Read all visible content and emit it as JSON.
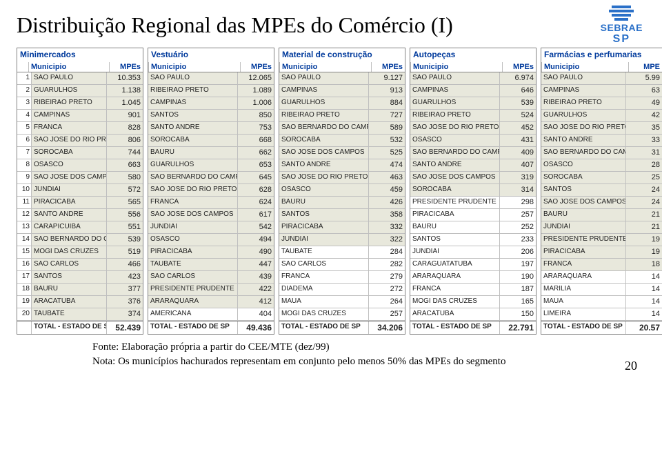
{
  "page_title": "Distribuição Regional das MPEs do Comércio (I)",
  "logo": {
    "brand": "SEBRAE",
    "sub": "SP"
  },
  "header_labels": {
    "municipio": "Municipio",
    "mpes": "MPEs",
    "mpe_trunc": "MPE"
  },
  "categories": [
    {
      "name": "Minimercados",
      "show_index": true,
      "rows": [
        {
          "i": "1",
          "m": "SAO PAULO",
          "v": "10.353",
          "s": true
        },
        {
          "i": "2",
          "m": "GUARULHOS",
          "v": "1.138",
          "s": true
        },
        {
          "i": "3",
          "m": "RIBEIRAO PRETO",
          "v": "1.045",
          "s": true
        },
        {
          "i": "4",
          "m": "CAMPINAS",
          "v": "901",
          "s": true
        },
        {
          "i": "5",
          "m": "FRANCA",
          "v": "828",
          "s": true
        },
        {
          "i": "6",
          "m": "SAO JOSE DO RIO PRETO",
          "v": "806",
          "s": true
        },
        {
          "i": "7",
          "m": "SOROCABA",
          "v": "744",
          "s": true
        },
        {
          "i": "8",
          "m": "OSASCO",
          "v": "663",
          "s": true
        },
        {
          "i": "9",
          "m": "SAO JOSE DOS CAMPOS",
          "v": "580",
          "s": true
        },
        {
          "i": "10",
          "m": "JUNDIAI",
          "v": "572",
          "s": true
        },
        {
          "i": "11",
          "m": "PIRACICABA",
          "v": "565",
          "s": true
        },
        {
          "i": "12",
          "m": "SANTO ANDRE",
          "v": "556",
          "s": true
        },
        {
          "i": "13",
          "m": "CARAPICUIBA",
          "v": "551",
          "s": true
        },
        {
          "i": "14",
          "m": "SAO BERNARDO DO CAMPO",
          "v": "539",
          "s": true
        },
        {
          "i": "15",
          "m": "MOGI DAS CRUZES",
          "v": "519",
          "s": true
        },
        {
          "i": "16",
          "m": "SAO CARLOS",
          "v": "466",
          "s": true
        },
        {
          "i": "17",
          "m": "SANTOS",
          "v": "423",
          "s": true
        },
        {
          "i": "18",
          "m": "BAURU",
          "v": "377",
          "s": true
        },
        {
          "i": "19",
          "m": "ARACATUBA",
          "v": "376",
          "s": true
        },
        {
          "i": "20",
          "m": "TAUBATE",
          "v": "374",
          "s": true
        }
      ],
      "total": {
        "m": "TOTAL - ESTADO DE SP",
        "v": "52.439"
      }
    },
    {
      "name": "Vestuário",
      "show_index": false,
      "rows": [
        {
          "m": "SAO PAULO",
          "v": "12.065",
          "s": true
        },
        {
          "m": "RIBEIRAO PRETO",
          "v": "1.089",
          "s": true
        },
        {
          "m": "CAMPINAS",
          "v": "1.006",
          "s": true
        },
        {
          "m": "SANTOS",
          "v": "850",
          "s": true
        },
        {
          "m": "SANTO ANDRE",
          "v": "753",
          "s": true
        },
        {
          "m": "SOROCABA",
          "v": "668",
          "s": true
        },
        {
          "m": "BAURU",
          "v": "662",
          "s": true
        },
        {
          "m": "GUARULHOS",
          "v": "653",
          "s": true
        },
        {
          "m": "SAO BERNARDO DO CAMPO",
          "v": "645",
          "s": true
        },
        {
          "m": "SAO JOSE DO RIO PRETO",
          "v": "628",
          "s": true
        },
        {
          "m": "FRANCA",
          "v": "624",
          "s": true
        },
        {
          "m": "SAO JOSE DOS CAMPOS",
          "v": "617",
          "s": true
        },
        {
          "m": "JUNDIAI",
          "v": "542",
          "s": true
        },
        {
          "m": "OSASCO",
          "v": "494",
          "s": true
        },
        {
          "m": "PIRACICABA",
          "v": "490",
          "s": true
        },
        {
          "m": "TAUBATE",
          "v": "447",
          "s": true
        },
        {
          "m": "SAO CARLOS",
          "v": "439",
          "s": true
        },
        {
          "m": "PRESIDENTE PRUDENTE",
          "v": "422",
          "s": true
        },
        {
          "m": "ARARAQUARA",
          "v": "412",
          "s": true
        },
        {
          "m": "AMERICANA",
          "v": "404",
          "s": false
        }
      ],
      "total": {
        "m": "TOTAL - ESTADO DE SP",
        "v": "49.436"
      }
    },
    {
      "name": "Material de construção",
      "show_index": false,
      "rows": [
        {
          "m": "SAO PAULO",
          "v": "9.127",
          "s": true
        },
        {
          "m": "CAMPINAS",
          "v": "913",
          "s": true
        },
        {
          "m": "GUARULHOS",
          "v": "884",
          "s": true
        },
        {
          "m": "RIBEIRAO PRETO",
          "v": "727",
          "s": true
        },
        {
          "m": "SAO BERNARDO DO CAMPO",
          "v": "589",
          "s": true
        },
        {
          "m": "SOROCABA",
          "v": "532",
          "s": true
        },
        {
          "m": "SAO JOSE DOS CAMPOS",
          "v": "525",
          "s": true
        },
        {
          "m": "SANTO ANDRE",
          "v": "474",
          "s": true
        },
        {
          "m": "SAO JOSE DO RIO PRETO",
          "v": "463",
          "s": true
        },
        {
          "m": "OSASCO",
          "v": "459",
          "s": true
        },
        {
          "m": "BAURU",
          "v": "426",
          "s": true
        },
        {
          "m": "SANTOS",
          "v": "358",
          "s": true
        },
        {
          "m": "PIRACICABA",
          "v": "332",
          "s": true
        },
        {
          "m": "JUNDIAI",
          "v": "322",
          "s": true
        },
        {
          "m": "TAUBATE",
          "v": "284",
          "s": false
        },
        {
          "m": "SAO CARLOS",
          "v": "282",
          "s": false
        },
        {
          "m": "FRANCA",
          "v": "279",
          "s": false
        },
        {
          "m": "DIADEMA",
          "v": "272",
          "s": false
        },
        {
          "m": "MAUA",
          "v": "264",
          "s": false
        },
        {
          "m": "MOGI DAS CRUZES",
          "v": "257",
          "s": false
        }
      ],
      "total": {
        "m": "TOTAL - ESTADO DE SP",
        "v": "34.206"
      }
    },
    {
      "name": "Autopeças",
      "show_index": false,
      "rows": [
        {
          "m": "SAO PAULO",
          "v": "6.974",
          "s": true
        },
        {
          "m": "CAMPINAS",
          "v": "646",
          "s": true
        },
        {
          "m": "GUARULHOS",
          "v": "539",
          "s": true
        },
        {
          "m": "RIBEIRAO PRETO",
          "v": "524",
          "s": true
        },
        {
          "m": "SAO JOSE DO RIO PRETO",
          "v": "452",
          "s": true
        },
        {
          "m": "OSASCO",
          "v": "431",
          "s": true
        },
        {
          "m": "SAO BERNARDO DO CAMPO",
          "v": "409",
          "s": true
        },
        {
          "m": "SANTO ANDRE",
          "v": "407",
          "s": true
        },
        {
          "m": "SAO JOSE DOS CAMPOS",
          "v": "319",
          "s": true
        },
        {
          "m": "SOROCABA",
          "v": "314",
          "s": true
        },
        {
          "m": "PRESIDENTE PRUDENTE",
          "v": "298",
          "s": false
        },
        {
          "m": "PIRACICABA",
          "v": "257",
          "s": false
        },
        {
          "m": "BAURU",
          "v": "252",
          "s": false
        },
        {
          "m": "SANTOS",
          "v": "233",
          "s": false
        },
        {
          "m": "JUNDIAI",
          "v": "206",
          "s": false
        },
        {
          "m": "CARAGUATATUBA",
          "v": "197",
          "s": false
        },
        {
          "m": "ARARAQUARA",
          "v": "190",
          "s": false
        },
        {
          "m": "FRANCA",
          "v": "187",
          "s": false
        },
        {
          "m": "MOGI DAS CRUZES",
          "v": "165",
          "s": false
        },
        {
          "m": "ARACATUBA",
          "v": "150",
          "s": false
        }
      ],
      "total": {
        "m": "TOTAL - ESTADO DE SP",
        "v": "22.791"
      }
    },
    {
      "name": "Farmácias e perfumarias",
      "show_index": false,
      "truncated_header": true,
      "rows": [
        {
          "m": "SAO PAULO",
          "v": "5.99",
          "s": true
        },
        {
          "m": "CAMPINAS",
          "v": "63",
          "s": true
        },
        {
          "m": "RIBEIRAO PRETO",
          "v": "49",
          "s": true
        },
        {
          "m": "GUARULHOS",
          "v": "42",
          "s": true
        },
        {
          "m": "SAO JOSE DO RIO PRETO",
          "v": "35",
          "s": true
        },
        {
          "m": "SANTO ANDRE",
          "v": "33",
          "s": true
        },
        {
          "m": "SAO BERNARDO DO CAMPO",
          "v": "31",
          "s": true
        },
        {
          "m": "OSASCO",
          "v": "28",
          "s": true
        },
        {
          "m": "SOROCABA",
          "v": "25",
          "s": true
        },
        {
          "m": "SANTOS",
          "v": "24",
          "s": true
        },
        {
          "m": "SAO JOSE DOS CAMPOS",
          "v": "24",
          "s": true
        },
        {
          "m": "BAURU",
          "v": "21",
          "s": true
        },
        {
          "m": "JUNDIAI",
          "v": "21",
          "s": true
        },
        {
          "m": "PRESIDENTE PRUDENTE",
          "v": "19",
          "s": true
        },
        {
          "m": "PIRACICABA",
          "v": "19",
          "s": true
        },
        {
          "m": "FRANCA",
          "v": "18",
          "s": true
        },
        {
          "m": "ARARAQUARA",
          "v": "14",
          "s": false
        },
        {
          "m": "MARILIA",
          "v": "14",
          "s": false
        },
        {
          "m": "MAUA",
          "v": "14",
          "s": false
        },
        {
          "m": "LIMEIRA",
          "v": "14",
          "s": false
        }
      ],
      "total": {
        "m": "TOTAL - ESTADO DE SP",
        "v": "20.57"
      }
    }
  ],
  "footer": {
    "line1": "Fonte: Elaboração própria a partir do CEE/MTE (dez/99)",
    "line2": "Nota: Os municípios hachurados representam em conjunto pelo menos 50% das MPEs do segmento"
  },
  "page_number": "20",
  "styling": {
    "title_color": "#000000",
    "header_color": "#003a9c",
    "shade_color": "#e8e8dc",
    "border_color": "#808080",
    "logo_color": "#2a70c8",
    "body_bg": "#ffffff"
  }
}
